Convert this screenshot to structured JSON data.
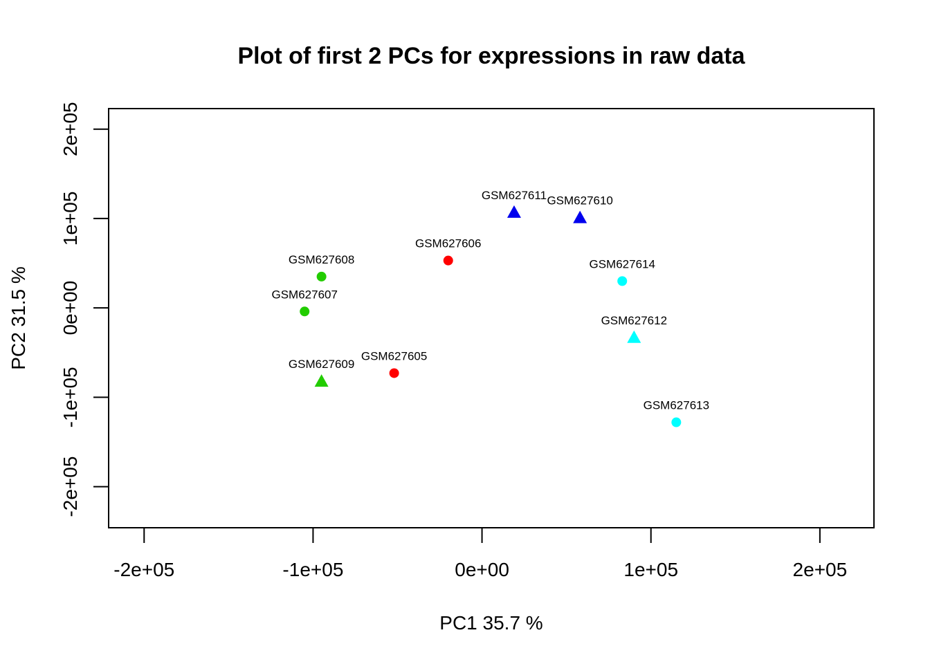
{
  "chart_data": {
    "type": "scatter",
    "title": "Plot of first 2 PCs for expressions in raw data",
    "xlabel": "PC1 35.7 %",
    "ylabel": "PC2 31.5 %",
    "xlim": [
      -221000,
      232000
    ],
    "ylim": [
      -246000,
      223000
    ],
    "x_ticks": [
      {
        "value": -200000,
        "label": "-2e+05"
      },
      {
        "value": -100000,
        "label": "-1e+05"
      },
      {
        "value": 0,
        "label": "0e+00"
      },
      {
        "value": 100000,
        "label": "1e+05"
      },
      {
        "value": 200000,
        "label": "2e+05"
      }
    ],
    "y_ticks": [
      {
        "value": -200000,
        "label": "-2e+05"
      },
      {
        "value": -100000,
        "label": "-1e+05"
      },
      {
        "value": 0,
        "label": "0e+00"
      },
      {
        "value": 100000,
        "label": "1e+05"
      },
      {
        "value": 200000,
        "label": "2e+05"
      }
    ],
    "grid": false,
    "points": [
      {
        "label": "GSM627605",
        "x": -52000,
        "y": -73000,
        "shape": "circle",
        "color": "#ff0000"
      },
      {
        "label": "GSM627606",
        "x": -20000,
        "y": 53000,
        "shape": "circle",
        "color": "#ff0000"
      },
      {
        "label": "GSM627607",
        "x": -105000,
        "y": -4000,
        "shape": "circle",
        "color": "#22cc00"
      },
      {
        "label": "GSM627608",
        "x": -95000,
        "y": 35000,
        "shape": "circle",
        "color": "#22cc00"
      },
      {
        "label": "GSM627609",
        "x": -95000,
        "y": -82000,
        "shape": "triangle",
        "color": "#22cc00"
      },
      {
        "label": "GSM627610",
        "x": 58000,
        "y": 101000,
        "shape": "triangle",
        "color": "#0000ee"
      },
      {
        "label": "GSM627611",
        "x": 19000,
        "y": 107000,
        "shape": "triangle",
        "color": "#0000ee"
      },
      {
        "label": "GSM627612",
        "x": 90000,
        "y": -33000,
        "shape": "triangle",
        "color": "#00ffff"
      },
      {
        "label": "GSM627613",
        "x": 115000,
        "y": -128000,
        "shape": "circle",
        "color": "#00ffff"
      },
      {
        "label": "GSM627614",
        "x": 83000,
        "y": 30000,
        "shape": "circle",
        "color": "#00ffff"
      }
    ]
  }
}
